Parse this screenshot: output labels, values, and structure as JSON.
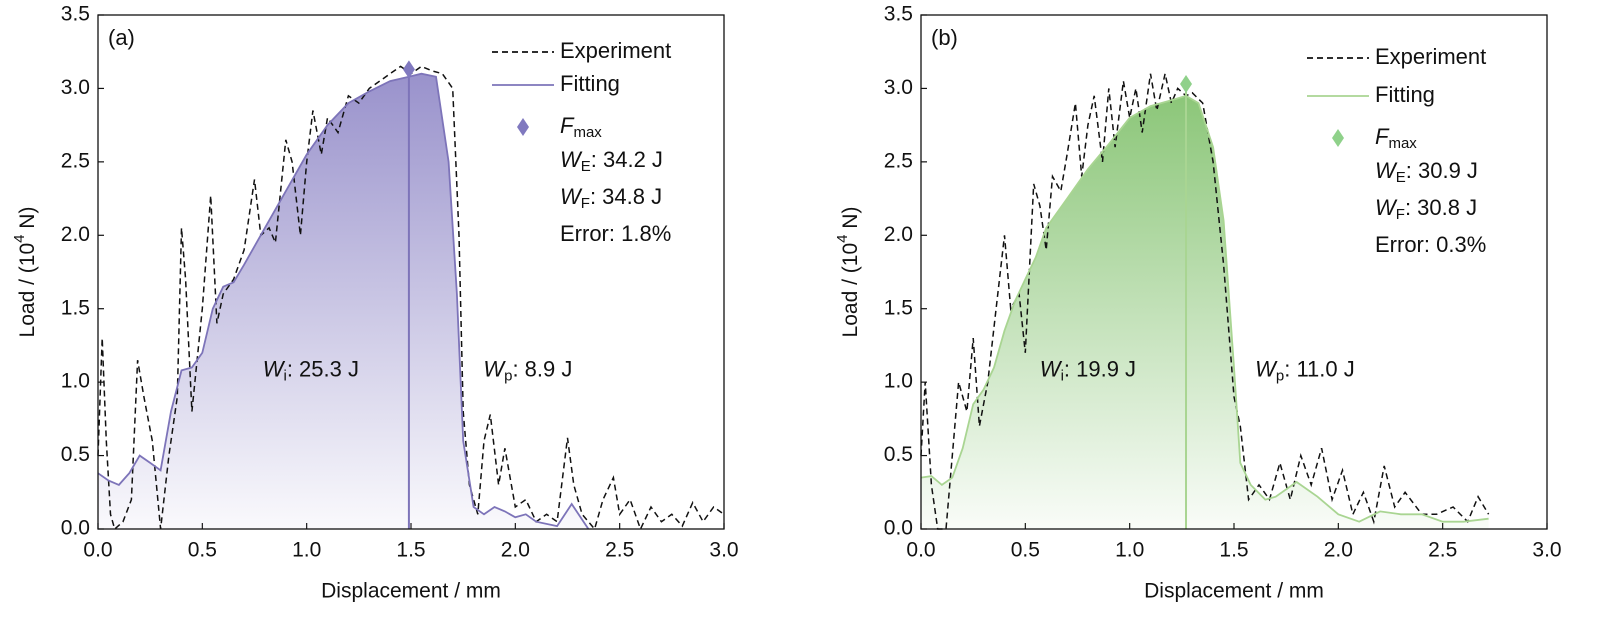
{
  "chart_data": [
    {
      "type": "line",
      "panel_label": "(a)",
      "xlabel": "Displacement / mm",
      "ylabel": {
        "text": "Load / (10",
        "sup": "4",
        "tail": " N)"
      },
      "xlim": [
        0,
        3
      ],
      "ylim": [
        0,
        3.5
      ],
      "xticks": [
        {
          "value": 0,
          "label": "0.0"
        },
        0.5,
        {
          "value": 1,
          "label": "1.0"
        },
        1.5,
        {
          "value": 2,
          "label": "2.0"
        },
        2.5,
        {
          "value": 3,
          "label": "3.0"
        }
      ],
      "yticks": [
        {
          "value": 0,
          "label": "0.0"
        },
        0.5,
        {
          "value": 1,
          "label": "1.0"
        },
        1.5,
        {
          "value": 2,
          "label": "2.0"
        },
        2.5,
        {
          "value": 3,
          "label": "3.0"
        },
        3.5
      ],
      "series": [
        {
          "name": "Experiment",
          "color": "#111111",
          "dash": true,
          "x": [
            0,
            0.02,
            0.04,
            0.06,
            0.08,
            0.12,
            0.16,
            0.19,
            0.22,
            0.26,
            0.3,
            0.34,
            0.38,
            0.4,
            0.42,
            0.45,
            0.5,
            0.54,
            0.57,
            0.6,
            0.65,
            0.7,
            0.75,
            0.78,
            0.82,
            0.85,
            0.9,
            0.93,
            0.97,
            1.0,
            1.03,
            1.07,
            1.1,
            1.15,
            1.2,
            1.25,
            1.3,
            1.35,
            1.4,
            1.45,
            1.5,
            1.55,
            1.6,
            1.65,
            1.7,
            1.73,
            1.75,
            1.78,
            1.82,
            1.85,
            1.88,
            1.92,
            1.95,
            2.0,
            2.05,
            2.1,
            2.15,
            2.2,
            2.25,
            2.28,
            2.32,
            2.38,
            2.42,
            2.47,
            2.5,
            2.55,
            2.6,
            2.65,
            2.7,
            2.75,
            2.8,
            2.85,
            2.9,
            2.95,
            3.0
          ],
          "values": [
            0.5,
            1.3,
            0.6,
            0.1,
            0.0,
            0.05,
            0.2,
            1.15,
            0.9,
            0.6,
            0.0,
            0.5,
            0.9,
            2.05,
            1.7,
            0.8,
            1.5,
            2.27,
            1.4,
            1.6,
            1.7,
            1.9,
            2.38,
            2.0,
            2.05,
            1.95,
            2.65,
            2.5,
            2.0,
            2.5,
            2.85,
            2.55,
            2.8,
            2.7,
            2.95,
            2.9,
            3.0,
            3.05,
            3.1,
            3.15,
            3.1,
            3.15,
            3.12,
            3.1,
            3.0,
            2.0,
            0.8,
            0.3,
            0.1,
            0.6,
            0.78,
            0.3,
            0.55,
            0.15,
            0.2,
            0.05,
            0.1,
            0.05,
            0.62,
            0.3,
            0.1,
            0.0,
            0.2,
            0.35,
            0.1,
            0.2,
            0.0,
            0.15,
            0.05,
            0.1,
            0.02,
            0.18,
            0.05,
            0.15,
            0.1
          ]
        },
        {
          "name": "Fitting",
          "color": "#7d74b9",
          "fill": "#8e86c6",
          "x": [
            0,
            0.05,
            0.1,
            0.15,
            0.2,
            0.25,
            0.3,
            0.35,
            0.4,
            0.45,
            0.5,
            0.55,
            0.6,
            0.65,
            0.7,
            0.8,
            0.9,
            1.0,
            1.1,
            1.2,
            1.3,
            1.4,
            1.49,
            1.55,
            1.62,
            1.68,
            1.72,
            1.75,
            1.8,
            1.85,
            1.9,
            1.95,
            2.0,
            2.05,
            2.1,
            2.2,
            2.27,
            2.35
          ],
          "values": [
            0.38,
            0.33,
            0.3,
            0.38,
            0.5,
            0.45,
            0.4,
            0.8,
            1.08,
            1.1,
            1.2,
            1.5,
            1.65,
            1.68,
            1.8,
            2.05,
            2.3,
            2.55,
            2.75,
            2.9,
            2.98,
            3.05,
            3.08,
            3.1,
            3.08,
            2.5,
            1.6,
            0.6,
            0.15,
            0.1,
            0.15,
            0.12,
            0.08,
            0.1,
            0.05,
            0.02,
            0.17,
            0.0
          ]
        }
      ],
      "fmax": {
        "sym": "F",
        "sub": "max",
        "x": 1.49,
        "y": 3.13,
        "color": "#8079bf"
      },
      "stats": [
        {
          "sym": "W",
          "sub": "E",
          "text": ": 34.2 J"
        },
        {
          "sym": "W",
          "sub": "F",
          "text": ": 34.8 J"
        },
        {
          "text": "Error: 1.8%"
        }
      ],
      "area_labels": [
        {
          "sym": "W",
          "sub": "i",
          "text": ": 25.3 J"
        },
        {
          "sym": "W",
          "sub": "p",
          "text": ": 8.9 J"
        }
      ]
    },
    {
      "type": "line",
      "panel_label": "(b)",
      "xlabel": "Displacement / mm",
      "ylabel": {
        "text": "Load / (10",
        "sup": "4",
        "tail": " N)"
      },
      "xlim": [
        0,
        3
      ],
      "ylim": [
        0,
        3.5
      ],
      "xticks": [
        {
          "value": 0,
          "label": "0.0"
        },
        0.5,
        {
          "value": 1,
          "label": "1.0"
        },
        1.5,
        {
          "value": 2,
          "label": "2.0"
        },
        2.5,
        {
          "value": 3,
          "label": "3.0"
        }
      ],
      "yticks": [
        {
          "value": 0,
          "label": "0.0"
        },
        0.5,
        {
          "value": 1,
          "label": "1.0"
        },
        1.5,
        {
          "value": 2,
          "label": "2.0"
        },
        2.5,
        {
          "value": 3,
          "label": "3.0"
        },
        3.5
      ],
      "series": [
        {
          "name": "Experiment",
          "color": "#111111",
          "dash": true,
          "x": [
            0,
            0.02,
            0.05,
            0.08,
            0.12,
            0.15,
            0.18,
            0.22,
            0.25,
            0.28,
            0.32,
            0.36,
            0.4,
            0.43,
            0.47,
            0.5,
            0.54,
            0.57,
            0.6,
            0.63,
            0.67,
            0.7,
            0.74,
            0.77,
            0.8,
            0.83,
            0.87,
            0.9,
            0.93,
            0.97,
            1.0,
            1.03,
            1.06,
            1.1,
            1.13,
            1.17,
            1.2,
            1.23,
            1.27,
            1.3,
            1.35,
            1.4,
            1.45,
            1.5,
            1.53,
            1.57,
            1.62,
            1.67,
            1.72,
            1.77,
            1.82,
            1.87,
            1.92,
            1.97,
            2.02,
            2.07,
            2.12,
            2.17,
            2.22,
            2.27,
            2.32,
            2.4,
            2.47,
            2.55,
            2.62,
            2.67,
            2.72
          ],
          "values": [
            0.5,
            1.0,
            0.3,
            0.0,
            0.0,
            0.5,
            1.0,
            0.8,
            1.3,
            0.7,
            1.0,
            1.5,
            2.0,
            1.5,
            1.6,
            1.2,
            2.35,
            2.2,
            1.9,
            2.4,
            2.3,
            2.55,
            2.9,
            2.4,
            2.75,
            2.95,
            2.5,
            3.0,
            2.6,
            3.05,
            2.8,
            3.0,
            2.7,
            3.1,
            2.85,
            3.1,
            2.9,
            3.0,
            2.95,
            2.97,
            2.9,
            2.5,
            1.8,
            0.9,
            0.7,
            0.2,
            0.3,
            0.2,
            0.45,
            0.2,
            0.5,
            0.3,
            0.55,
            0.2,
            0.4,
            0.1,
            0.25,
            0.05,
            0.43,
            0.15,
            0.25,
            0.1,
            0.1,
            0.15,
            0.05,
            0.22,
            0.1
          ]
        },
        {
          "name": "Fitting",
          "color": "#a9d592",
          "fill": "#7fc06a",
          "x": [
            0,
            0.05,
            0.1,
            0.15,
            0.2,
            0.25,
            0.3,
            0.35,
            0.4,
            0.45,
            0.5,
            0.55,
            0.6,
            0.7,
            0.8,
            0.9,
            1.0,
            1.1,
            1.2,
            1.27,
            1.33,
            1.4,
            1.45,
            1.5,
            1.53,
            1.58,
            1.65,
            1.7,
            1.8,
            1.9,
            2.0,
            2.1,
            2.2,
            2.3,
            2.4,
            2.5,
            2.6,
            2.72
          ],
          "values": [
            0.35,
            0.36,
            0.3,
            0.35,
            0.55,
            0.85,
            0.95,
            1.1,
            1.35,
            1.55,
            1.7,
            1.85,
            2.05,
            2.25,
            2.45,
            2.62,
            2.8,
            2.88,
            2.92,
            2.95,
            2.9,
            2.6,
            2.1,
            1.1,
            0.45,
            0.3,
            0.2,
            0.22,
            0.32,
            0.22,
            0.1,
            0.05,
            0.12,
            0.1,
            0.1,
            0.05,
            0.05,
            0.07
          ]
        }
      ],
      "fmax": {
        "sym": "F",
        "sub": "max",
        "x": 1.27,
        "y": 3.03,
        "color": "#8fd18a"
      },
      "stats": [
        {
          "sym": "W",
          "sub": "E",
          "text": ": 30.9 J"
        },
        {
          "sym": "W",
          "sub": "F",
          "text": ": 30.8 J"
        },
        {
          "text": "Error: 0.3%"
        }
      ],
      "area_labels": [
        {
          "sym": "W",
          "sub": "i",
          "text": ": 19.9 J"
        },
        {
          "sym": "W",
          "sub": "p",
          "text": ": 11.0 J"
        }
      ]
    }
  ]
}
